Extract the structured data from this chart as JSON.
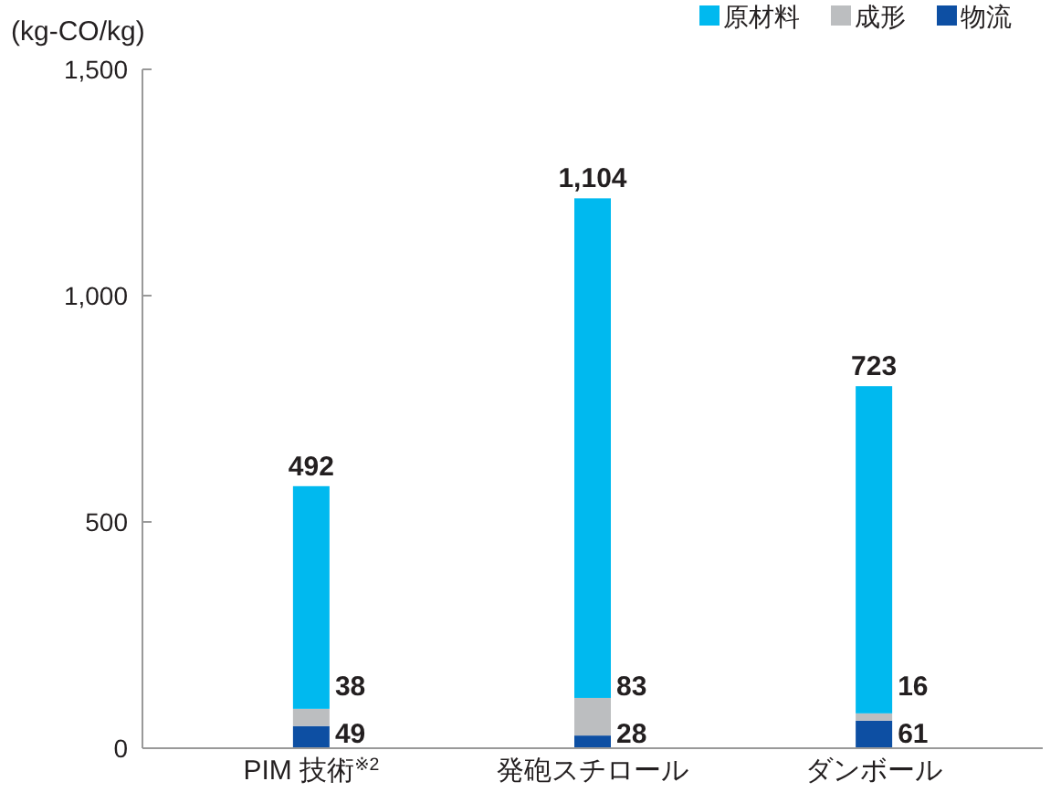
{
  "chart_data": {
    "type": "bar",
    "stacked": true,
    "ylabel": "(kg-CO/kg)",
    "categories": [
      "PIM 技術$^{※2}$",
      "発砲スチロール",
      "ダンボール"
    ],
    "series": [
      {
        "name": "物流",
        "color": "#0d4fa3",
        "values": [
          49,
          28,
          61
        ],
        "value_labels": [
          "49",
          "28",
          "61"
        ]
      },
      {
        "name": "成形",
        "color": "#bcbec0",
        "values": [
          38,
          83,
          16
        ],
        "value_labels": [
          "38",
          "83",
          "16"
        ]
      },
      {
        "name": "原材料",
        "color": "#00b9ef",
        "values": [
          492,
          1104,
          723
        ],
        "value_labels": [
          "492",
          "1,104",
          "723"
        ]
      }
    ],
    "ylim": [
      0,
      1500
    ],
    "yticks": [
      0,
      500,
      {
        "value": 1000,
        "label": "1,000"
      },
      {
        "value": 1500,
        "label": "1,500"
      }
    ],
    "legend": "top right"
  }
}
